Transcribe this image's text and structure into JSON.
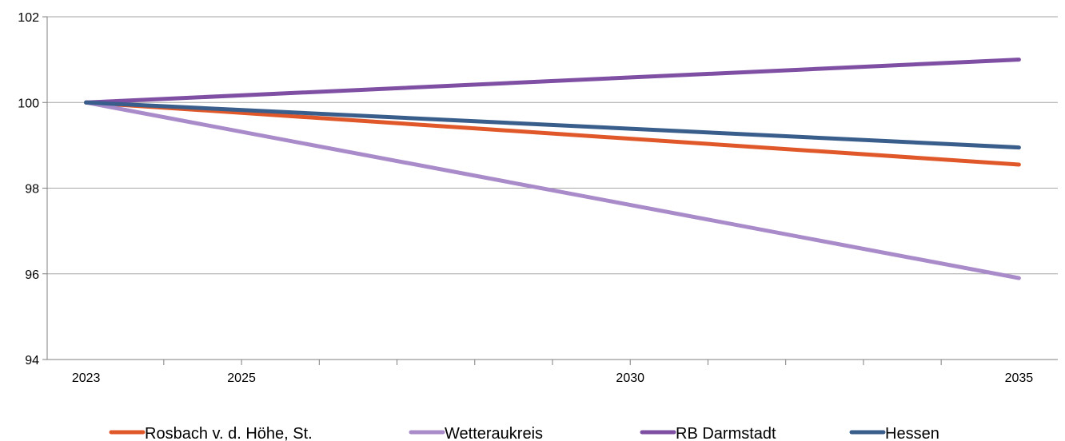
{
  "chart_data": {
    "type": "line",
    "x": [
      2023,
      2035
    ],
    "x_ticks": [
      2023,
      2025,
      2030,
      2035
    ],
    "x_minor_ticks": [
      2024,
      2025,
      2026,
      2027,
      2028,
      2029,
      2030,
      2031,
      2032,
      2033,
      2034
    ],
    "xlim": [
      2022.5,
      2035.5
    ],
    "ylim": [
      94,
      102
    ],
    "y_ticks": [
      94,
      96,
      98,
      100,
      102
    ],
    "grid": true,
    "legend_position": "bottom",
    "series": [
      {
        "name": "Rosbach v. d. Höhe, St.",
        "color": "#E0582A",
        "values": [
          100,
          98.55
        ]
      },
      {
        "name": "Wetteraukreis",
        "color": "#A98BCA",
        "values": [
          100,
          95.9
        ]
      },
      {
        "name": "RB Darmstadt",
        "color": "#7E4FA3",
        "values": [
          100,
          101.0
        ]
      },
      {
        "name": "Hessen",
        "color": "#3A5E8C",
        "values": [
          100,
          98.95
        ]
      }
    ]
  }
}
